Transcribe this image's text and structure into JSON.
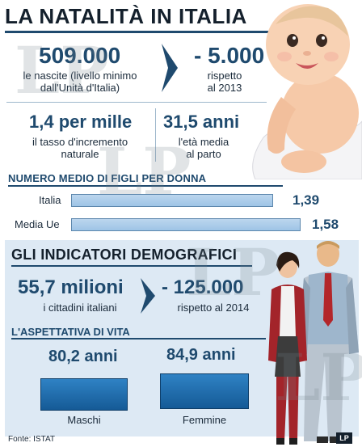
{
  "title": "LA NATALITÀ IN ITALIA",
  "top_stats": {
    "births_value": "509.000",
    "births_desc_line1": "le nascite (livello minimo",
    "births_desc_line2": "dall'Unità d'Italia)",
    "births_change_value": "- 5.000",
    "births_change_line1": "rispetto",
    "births_change_line2": "al 2013",
    "growth_value": "1,4 per mille",
    "growth_line1": "il tasso d'incremento",
    "growth_line2": "naturale",
    "age_value": "31,5 anni",
    "age_line1": "l'età media",
    "age_line2": "al parto"
  },
  "figli": {
    "title": "NUMERO MEDIO DI FIGLI PER DONNA",
    "rows": [
      {
        "label": "Italia",
        "value_text": "1,39",
        "value": 1.39
      },
      {
        "label": "Media Ue",
        "value_text": "1,58",
        "value": 1.58
      }
    ]
  },
  "demografici": {
    "title": "GLI INDICATORI DEMOGRAFICI",
    "population_value": "55,7 milioni",
    "population_desc": "i cittadini italiani",
    "population_change_value": "- 125.000",
    "population_change_desc": "rispetto al 2014",
    "aspettativa_title": "L'ASPETTATIVA DI VITA",
    "men_value": "80,2 anni",
    "men_label": "Maschi",
    "women_value": "84,9 anni",
    "women_label": "Femmine"
  },
  "source": "Fonte: ISTAT",
  "watermark_text": "LP",
  "colors": {
    "navy": "#1f4a6e",
    "bar_fill": "#a9cbeb",
    "box_fill": "#1f6fb0",
    "panel": "#dde9f4"
  }
}
